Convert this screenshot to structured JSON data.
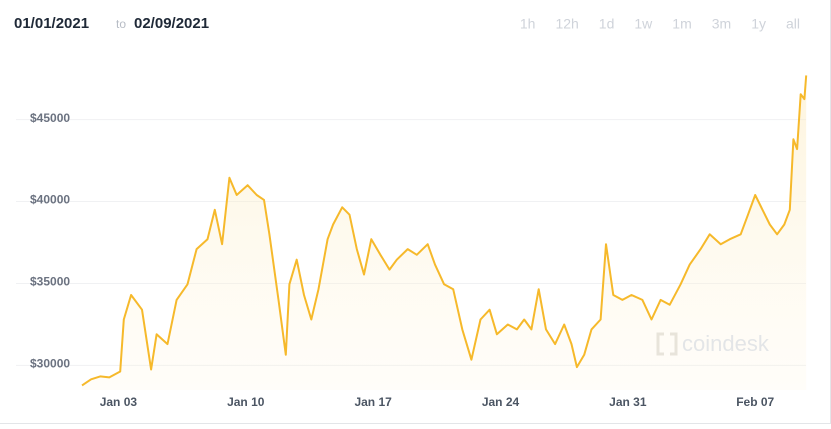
{
  "chart_data": {
    "type": "line",
    "date_range": {
      "from": "01/01/2021",
      "sep": "to",
      "to": "02/09/2021"
    },
    "range_buttons": [
      "1h",
      "12h",
      "1d",
      "1w",
      "1m",
      "3m",
      "1y",
      "all"
    ],
    "watermark": "coindesk",
    "color": "#f6b92b",
    "grid": true,
    "x": [
      0,
      0.5,
      1,
      1.5,
      2.1,
      2.3,
      2.7,
      3.3,
      3.8,
      4.1,
      4.7,
      5.2,
      5.8,
      6.3,
      6.9,
      7.3,
      7.7,
      8.1,
      8.5,
      9.1,
      9.6,
      10,
      10.3,
      10.8,
      11.2,
      11.4,
      11.8,
      12.2,
      12.6,
      13,
      13.5,
      13.8,
      14.3,
      14.7,
      15.1,
      15.5,
      15.9,
      16.4,
      16.9,
      17.3,
      17.9,
      18.4,
      19,
      19.4,
      19.9,
      20.4,
      20.9,
      21.4,
      21.9,
      22.4,
      22.8,
      23.4,
      23.9,
      24.3,
      24.7,
      25.1,
      25.5,
      26,
      26.5,
      26.9,
      27.2,
      27.6,
      28,
      28.5,
      28.8,
      29.2,
      29.7,
      30.2,
      30.8,
      31.3,
      31.8,
      32.3,
      32.9,
      33.4,
      34,
      34.5,
      35.1,
      35.6,
      36.2,
      36.6,
      37,
      37.4,
      37.8,
      38.2,
      38.6,
      38.9,
      39.1,
      39.3,
      39.5,
      39.7,
      39.8
    ],
    "values": [
      28780,
      29150,
      29330,
      29270,
      29630,
      32800,
      34300,
      33400,
      29750,
      31900,
      31300,
      34000,
      34950,
      37100,
      37700,
      39500,
      37400,
      41450,
      40400,
      41000,
      40400,
      40100,
      38000,
      34000,
      30650,
      34950,
      36450,
      34300,
      32800,
      34650,
      37700,
      38600,
      39650,
      39200,
      37100,
      35550,
      37700,
      36750,
      35850,
      36450,
      37100,
      36750,
      37400,
      36150,
      34950,
      34650,
      32200,
      30350,
      32800,
      33400,
      31900,
      32500,
      32200,
      32800,
      32200,
      34650,
      32200,
      31300,
      32500,
      31300,
      29900,
      30650,
      32200,
      32800,
      37400,
      34300,
      34000,
      34300,
      34000,
      32800,
      34000,
      33700,
      34950,
      36150,
      37100,
      38000,
      37400,
      37700,
      38000,
      39200,
      40400,
      39500,
      38600,
      38000,
      38600,
      39500,
      43800,
      43200,
      46550,
      46250,
      47700
    ],
    "xlim": [
      0,
      39.9
    ],
    "xticks": [
      {
        "value": 2,
        "label": "Jan 03"
      },
      {
        "value": 9,
        "label": "Jan 10"
      },
      {
        "value": 16,
        "label": "Jan 17"
      },
      {
        "value": 23,
        "label": "Jan 24"
      },
      {
        "value": 30,
        "label": "Jan 31"
      },
      {
        "value": 37,
        "label": "Feb 07"
      }
    ],
    "ylim": [
      28500,
      48700
    ],
    "yticks": [
      {
        "value": 30000,
        "label": "$30000"
      },
      {
        "value": 35000,
        "label": "$35000"
      },
      {
        "value": 40000,
        "label": "$40000"
      },
      {
        "value": 45000,
        "label": "$45000"
      }
    ]
  }
}
